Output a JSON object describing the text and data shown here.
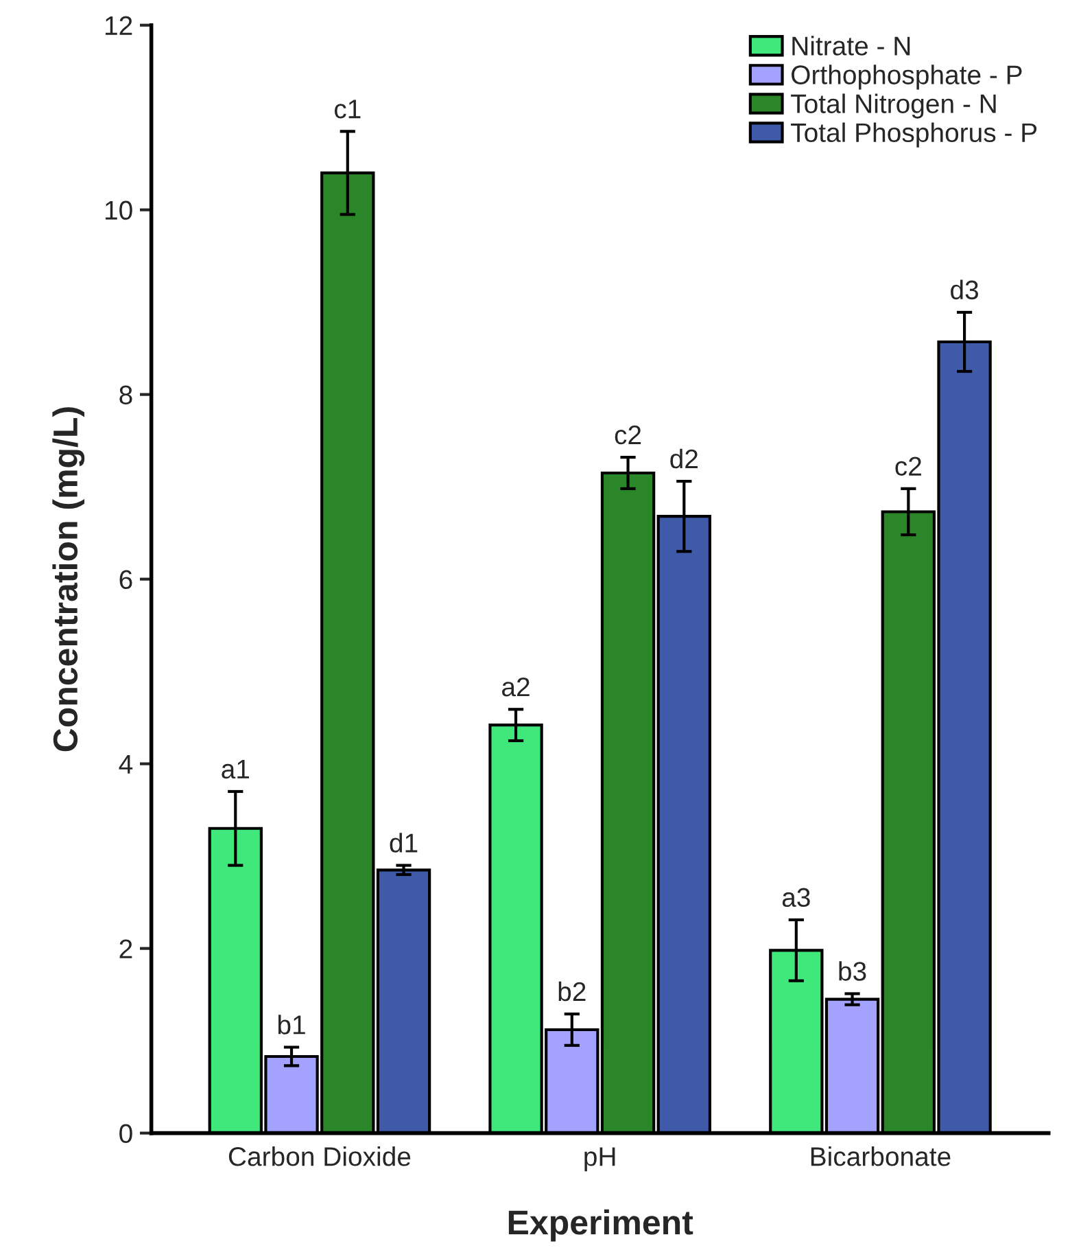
{
  "chart_data": {
    "type": "bar",
    "xlabel": "Experiment",
    "ylabel": "Concentration (mg/L)",
    "categories": [
      "Carbon Dioxide",
      "pH",
      "Bicarbonate"
    ],
    "series": [
      {
        "name": "Nitrate - N",
        "color": "#40e87c",
        "values": [
          3.3,
          4.42,
          1.98
        ],
        "errors": [
          0.4,
          0.17,
          0.33
        ],
        "value_labels": [
          "a1",
          "a2",
          "a3"
        ]
      },
      {
        "name": "Orthophosphate - P",
        "color": "#a3a3ff",
        "values": [
          0.83,
          1.12,
          1.45
        ],
        "errors": [
          0.1,
          0.17,
          0.06
        ],
        "value_labels": [
          "b1",
          "b2",
          "b3"
        ]
      },
      {
        "name": "Total Nitrogen - N",
        "color": "#2a8628",
        "values": [
          10.4,
          7.15,
          6.73
        ],
        "errors": [
          0.45,
          0.17,
          0.25
        ],
        "value_labels": [
          "c1",
          "c2",
          "c2"
        ]
      },
      {
        "name": "Total Phosphorus - P",
        "color": "#3e5aa8",
        "values": [
          2.85,
          6.68,
          8.57
        ],
        "errors": [
          0.05,
          0.38,
          0.32
        ],
        "value_labels": [
          "d1",
          "d2",
          "d3"
        ]
      }
    ],
    "ylim": [
      0,
      12
    ],
    "yticks": [
      0,
      2,
      4,
      6,
      8,
      10,
      12
    ],
    "grid": false,
    "legend": "top right"
  }
}
